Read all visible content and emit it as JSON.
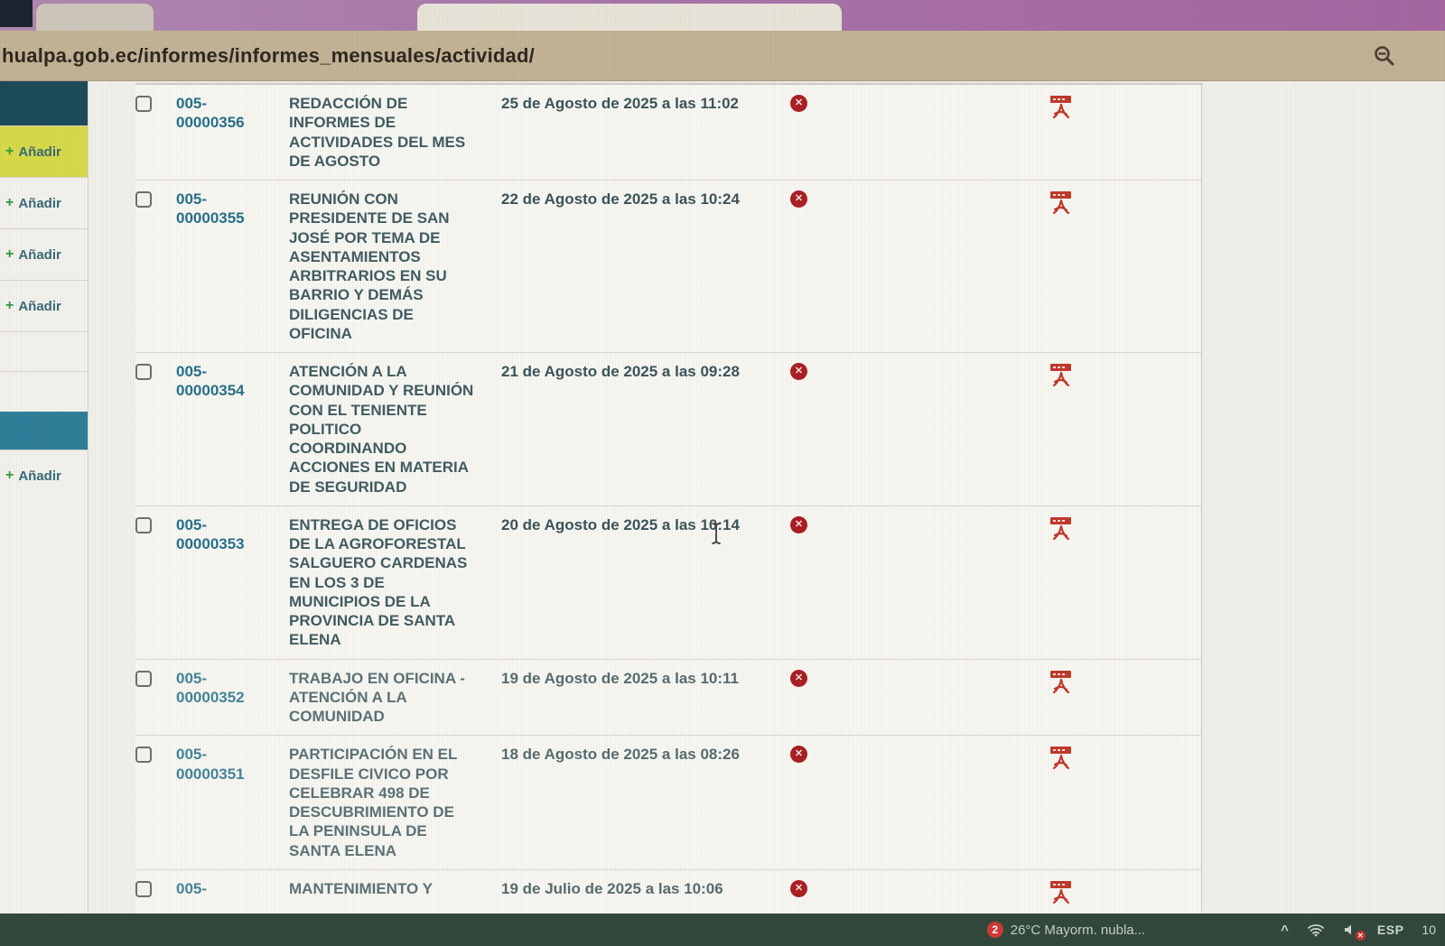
{
  "browser": {
    "url": "hualpa.gob.ec/informes/informes_mensuales/actividad/"
  },
  "sidebar": {
    "items": [
      {
        "type": "header-dark"
      },
      {
        "type": "add",
        "label": "Añadir",
        "highlight": true
      },
      {
        "type": "add",
        "label": "Añadir",
        "highlight": false
      },
      {
        "type": "add",
        "label": "Añadir",
        "highlight": false
      },
      {
        "type": "add",
        "label": "Añadir",
        "highlight": false
      },
      {
        "type": "spacer"
      },
      {
        "type": "spacer"
      },
      {
        "type": "header-light"
      },
      {
        "type": "add",
        "label": "Añadir",
        "highlight": false
      }
    ],
    "plus_glyph": "+"
  },
  "table": {
    "rows": [
      {
        "id": "005-00000356",
        "description": "REDACCIÓN DE INFORMES DE ACTIVIDADES DEL MES DE AGOSTO",
        "date": "25 de Agosto de 2025 a las 11:02",
        "bool_false": true,
        "pdf": true
      },
      {
        "id": "005-00000355",
        "description": "REUNIÓN CON PRESIDENTE DE SAN JOSÉ POR TEMA DE ASENTAMIENTOS ARBITRARIOS EN SU BARRIO Y DEMÁS DILIGENCIAS DE OFICINA",
        "date": "22 de Agosto de 2025 a las 10:24",
        "bool_false": true,
        "pdf": true
      },
      {
        "id": "005-00000354",
        "description": "ATENCIÓN A LA COMUNIDAD Y REUNIÓN CON EL TENIENTE POLITICO COORDINANDO ACCIONES EN MATERIA DE SEGURIDAD",
        "date": "21 de Agosto de 2025 a las 09:28",
        "bool_false": true,
        "pdf": true
      },
      {
        "id": "005-00000353",
        "description": "ENTREGA DE OFICIOS DE LA AGROFORESTAL SALGUERO CARDENAS EN LOS 3 DE MUNICIPIOS DE LA PROVINCIA DE SANTA ELENA",
        "date": "20 de Agosto de 2025 a las 10:14",
        "bool_false": true,
        "pdf": true
      },
      {
        "id": "005-00000352",
        "description": "TRABAJO EN OFICINA - ATENCIÓN A LA COMUNIDAD",
        "date": "19 de Agosto de 2025 a las 10:11",
        "bool_false": true,
        "pdf": true
      },
      {
        "id": "005-00000351",
        "description": "PARTICIPACIÓN EN EL DESFILE CIVICO POR CELEBRAR 498 DE DESCUBRIMIENTO DE LA PENINSULA DE SANTA ELENA",
        "date": "18 de Agosto de 2025 a las 08:26",
        "bool_false": true,
        "pdf": true
      },
      {
        "id": "005-",
        "description": "MANTENIMIENTO Y",
        "date": "19 de Julio de 2025 a las 10:06",
        "bool_false": true,
        "pdf": true
      }
    ],
    "bool_false_glyph": "✕"
  },
  "taskbar": {
    "badge_count": "2",
    "weather": "26°C  Mayorm. nubla...",
    "chevron": "^",
    "language": "ESP",
    "time": "10"
  },
  "colors": {
    "accent_teal_dark": "#1d4b57",
    "accent_teal_light": "#2f7f99",
    "link_teal": "#26718a",
    "highlight_yellow": "#d7d949",
    "bool_false_red": "#aa1f23",
    "pdf_red": "#c0392b",
    "chrome_purple": "#a874a8",
    "urlbar_tan": "#c3b294",
    "taskbar_green": "#32483b"
  }
}
